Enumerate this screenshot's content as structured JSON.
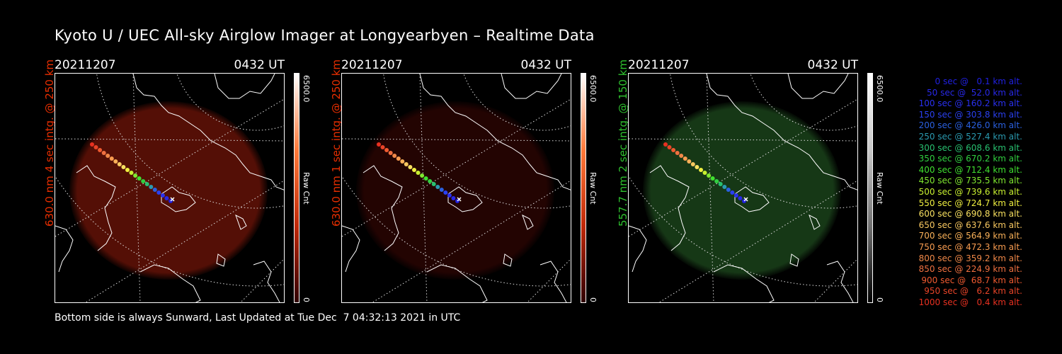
{
  "title": "Kyoto U / UEC All-sky Airglow Imager at Longyearbyen – Realtime Data",
  "panels": [
    {
      "date": "20211207",
      "time": "0432 UT",
      "label": "630.0 nm 4 sec intg. @ 250 km",
      "label_color": "#e82e00",
      "glow_color": "#701408",
      "glow_opacity": 0.75,
      "cbar_max": "6500.0",
      "cbar_unit": "Raw Cnt",
      "cbar_min": "0",
      "cbar_colors": [
        "#ffffff",
        "#ff7a3a",
        "#c02808",
        "#300000"
      ]
    },
    {
      "date": "20211207",
      "time": "0432 UT",
      "label": "630.0 nm 1 sec intg. @ 250 km",
      "label_color": "#e82e00",
      "glow_color": "#3a0604",
      "glow_opacity": 0.6,
      "cbar_max": "6500.0",
      "cbar_unit": "Raw Cnt",
      "cbar_min": "0",
      "cbar_colors": [
        "#ffffff",
        "#ff7a3a",
        "#c02808",
        "#300000"
      ]
    },
    {
      "date": "20211207",
      "time": "0432 UT",
      "label": "557.7 nm 2 sec intg. @ 150 km",
      "label_color": "#2ec02e",
      "glow_color": "#1e4a1e",
      "glow_opacity": 0.75,
      "cbar_max": "6500.0",
      "cbar_unit": "Raw Cnt",
      "cbar_min": "0",
      "cbar_colors": [
        "#ffffff",
        "#c8c8c8",
        "#707070",
        "#000000"
      ]
    }
  ],
  "legend": [
    {
      "text": "   0 sec @   0.1 km alt.",
      "color": "#2020e0"
    },
    {
      "text": "  50 sec @  52.0 km alt.",
      "color": "#2828e8"
    },
    {
      "text": " 100 sec @ 160.2 km alt.",
      "color": "#2a30f0"
    },
    {
      "text": " 150 sec @ 303.8 km alt.",
      "color": "#2a40f0"
    },
    {
      "text": " 200 sec @ 426.0 km alt.",
      "color": "#2a60e0"
    },
    {
      "text": " 250 sec @ 527.4 km alt.",
      "color": "#2a9ab0"
    },
    {
      "text": " 300 sec @ 608.6 km alt.",
      "color": "#28c070"
    },
    {
      "text": " 350 sec @ 670.2 km alt.",
      "color": "#30d040"
    },
    {
      "text": " 400 sec @ 712.4 km alt.",
      "color": "#40e030"
    },
    {
      "text": " 450 sec @ 735.5 km alt.",
      "color": "#80e830"
    },
    {
      "text": " 500 sec @ 739.6 km alt.",
      "color": "#c8f030"
    },
    {
      "text": " 550 sec @ 724.7 km alt.",
      "color": "#f0f040"
    },
    {
      "text": " 600 sec @ 690.8 km alt.",
      "color": "#f8e060"
    },
    {
      "text": " 650 sec @ 637.6 km alt.",
      "color": "#f8c860"
    },
    {
      "text": " 700 sec @ 564.9 km alt.",
      "color": "#f8b058"
    },
    {
      "text": " 750 sec @ 472.3 km alt.",
      "color": "#f89c50"
    },
    {
      "text": " 800 sec @ 359.2 km alt.",
      "color": "#f08848"
    },
    {
      "text": " 850 sec @ 224.9 km alt.",
      "color": "#f07040"
    },
    {
      "text": " 900 sec @  68.7 km alt.",
      "color": "#f05a30"
    },
    {
      "text": " 950 sec @   6.2 km alt.",
      "color": "#e84428"
    },
    {
      "text": "1000 sec @   0.4 km alt.",
      "color": "#e83020"
    }
  ],
  "footer": "Bottom side is always Sunward, Last Updated at Tue Dec  7 04:32:13 2021 in UTC"
}
